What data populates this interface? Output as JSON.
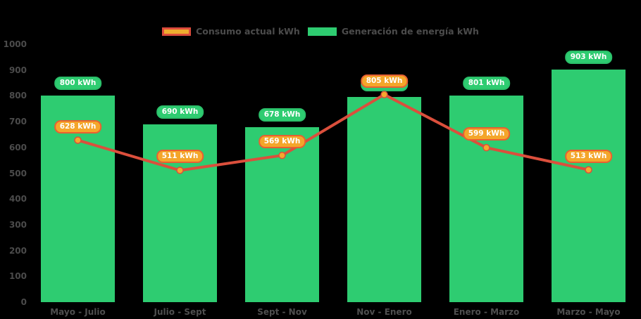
{
  "colors": {
    "background": "#000000",
    "bar_green": "#2ECC71",
    "bar_label_fill": "#2ECC71",
    "bar_label_border": "#2BC06A",
    "line_red": "#DB4F3C",
    "point_fill": "#F5A82D",
    "line_label_fill": "#F4A62A",
    "line_label_border": "#E86032",
    "axis_text": "#4b4b4b",
    "label_text_on_pill": "#ffffff"
  },
  "legend": {
    "items": [
      {
        "id": "consumo",
        "label": "Consumo actual kWh",
        "swatch_fill": "#EFAD2F",
        "swatch_border": "#DD4B3C"
      },
      {
        "id": "generacion",
        "label": "Generación de energía kWh",
        "swatch_fill": "#2ECC71",
        "swatch_border": "#2ECC71"
      }
    ]
  },
  "chart_data": {
    "type": "combo (bar + line)",
    "title": "",
    "xlabel": "",
    "ylabel": "",
    "categories": [
      "Mayo - Julio",
      "Julio - Sept",
      "Sept - Nov",
      "Nov - Enero",
      "Enero - Marzo",
      "Marzo - Mayo"
    ],
    "series": [
      {
        "name": "Generación de energía kWh",
        "type": "bar",
        "color": "#2ECC71",
        "values": [
          800,
          690,
          678,
          795,
          801,
          903
        ],
        "labels": [
          "800 kWh",
          "690 kWh",
          "678 kWh",
          "795 kWh",
          "801 kWh",
          "903 kWh"
        ]
      },
      {
        "name": "Consumo actual kWh",
        "type": "line",
        "line_color": "#DB4F3C",
        "point_color": "#F5A82D",
        "values": [
          628,
          511,
          569,
          805,
          599,
          513
        ],
        "labels": [
          "628 kWh",
          "511 kWh",
          "569 kWh",
          "805 kWh",
          "599 kWh",
          "513 kWh"
        ]
      }
    ],
    "occluded_bar_label_index": 3,
    "ylim": [
      0,
      1000
    ],
    "y_ticks": [
      1000,
      900,
      800,
      700,
      600,
      500,
      400,
      300,
      200,
      100,
      0
    ],
    "grid": false,
    "legend_position": "top center"
  }
}
